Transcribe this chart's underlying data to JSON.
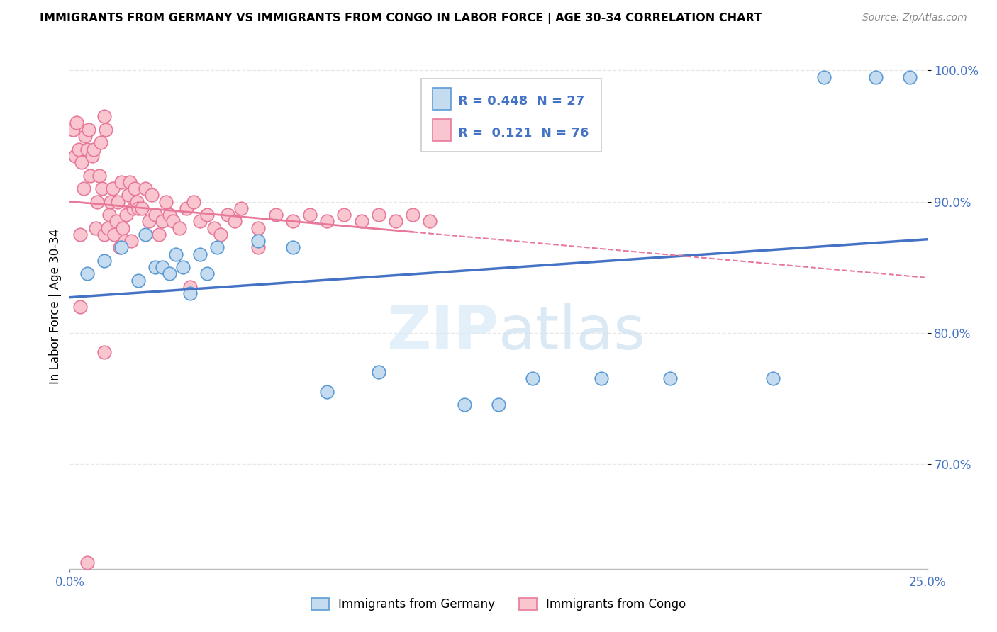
{
  "title": "IMMIGRANTS FROM GERMANY VS IMMIGRANTS FROM CONGO IN LABOR FORCE | AGE 30-34 CORRELATION CHART",
  "source": "Source: ZipAtlas.com",
  "ylabel": "In Labor Force | Age 30-34",
  "legend_label1": "Immigrants from Germany",
  "legend_label2": "Immigrants from Congo",
  "r1": "0.448",
  "n1": "27",
  "r2": "0.121",
  "n2": "76",
  "color_germany_fill": "#c5dbf0",
  "color_germany_edge": "#5b9bd5",
  "color_congo_fill": "#f9c6d0",
  "color_congo_edge": "#e8789a",
  "color_germany_line": "#4472c4",
  "color_congo_line": "#e8789a",
  "color_grid": "#e8e8e8",
  "germany_x": [
    0.5,
    1.0,
    1.5,
    2.0,
    2.2,
    2.5,
    2.7,
    2.9,
    3.1,
    3.3,
    3.5,
    3.8,
    4.0,
    4.3,
    5.5,
    6.5,
    7.5,
    9.0,
    11.5,
    12.5,
    13.5,
    15.5,
    17.5,
    20.5,
    22.0,
    23.5,
    24.5
  ],
  "germany_y": [
    84.5,
    85.5,
    86.5,
    84.0,
    87.5,
    85.0,
    85.0,
    84.5,
    86.0,
    85.0,
    83.0,
    86.0,
    84.5,
    86.5,
    87.0,
    86.5,
    75.5,
    77.0,
    74.5,
    74.5,
    76.5,
    76.5,
    76.5,
    76.5,
    99.5,
    99.5,
    99.5
  ],
  "congo_x": [
    0.1,
    0.15,
    0.2,
    0.25,
    0.3,
    0.35,
    0.4,
    0.45,
    0.5,
    0.55,
    0.6,
    0.65,
    0.7,
    0.75,
    0.8,
    0.85,
    0.9,
    0.95,
    1.0,
    1.05,
    1.1,
    1.15,
    1.2,
    1.25,
    1.3,
    1.35,
    1.4,
    1.45,
    1.5,
    1.55,
    1.6,
    1.65,
    1.7,
    1.75,
    1.8,
    1.85,
    1.9,
    1.95,
    2.0,
    2.1,
    2.2,
    2.3,
    2.4,
    2.5,
    2.6,
    2.7,
    2.8,
    2.9,
    3.0,
    3.2,
    3.4,
    3.6,
    3.8,
    4.0,
    4.2,
    4.4,
    4.6,
    4.8,
    5.0,
    5.5,
    6.0,
    6.5,
    7.0,
    7.5,
    8.0,
    8.5,
    9.0,
    9.5,
    10.0,
    10.5,
    3.5,
    5.5,
    1.0,
    1.0,
    0.5,
    0.3
  ],
  "congo_y": [
    95.5,
    93.5,
    96.0,
    94.0,
    87.5,
    93.0,
    91.0,
    95.0,
    94.0,
    95.5,
    92.0,
    93.5,
    94.0,
    88.0,
    90.0,
    92.0,
    94.5,
    91.0,
    87.5,
    95.5,
    88.0,
    89.0,
    90.0,
    91.0,
    87.5,
    88.5,
    90.0,
    86.5,
    91.5,
    88.0,
    87.0,
    89.0,
    90.5,
    91.5,
    87.0,
    89.5,
    91.0,
    90.0,
    89.5,
    89.5,
    91.0,
    88.5,
    90.5,
    89.0,
    87.5,
    88.5,
    90.0,
    89.0,
    88.5,
    88.0,
    89.5,
    90.0,
    88.5,
    89.0,
    88.0,
    87.5,
    89.0,
    88.5,
    89.5,
    88.0,
    89.0,
    88.5,
    89.0,
    88.5,
    89.0,
    88.5,
    89.0,
    88.5,
    89.0,
    88.5,
    83.5,
    86.5,
    78.5,
    96.5,
    62.5,
    82.0
  ],
  "xlim": [
    0.0,
    25.0
  ],
  "ylim": [
    62.0,
    102.0
  ],
  "yticks": [
    70.0,
    80.0,
    90.0,
    100.0
  ],
  "xticks": [
    0.0,
    25.0
  ],
  "background_color": "#ffffff"
}
